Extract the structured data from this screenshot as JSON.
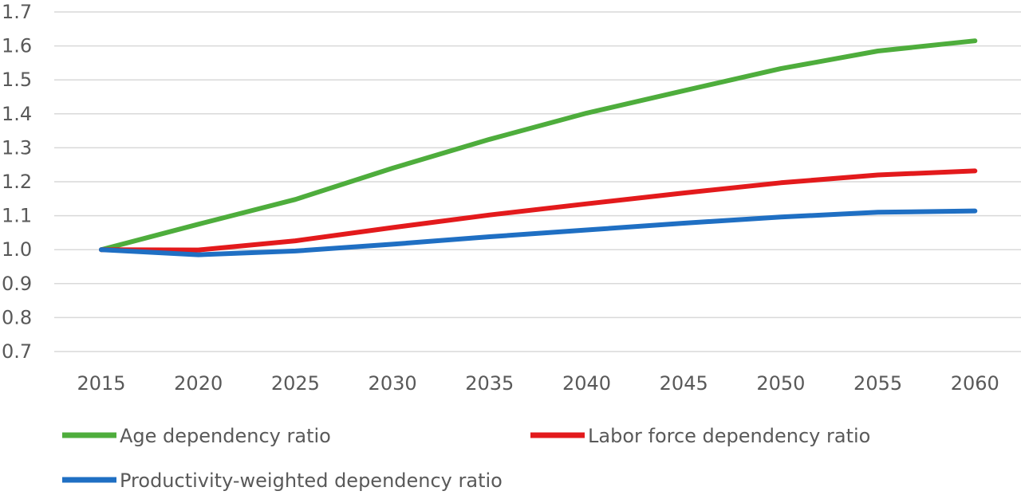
{
  "chart_data": {
    "type": "line",
    "x": [
      2015,
      2020,
      2025,
      2030,
      2035,
      2040,
      2045,
      2050,
      2055,
      2060
    ],
    "x_tick_labels": [
      "2015",
      "2020",
      "2025",
      "2030",
      "2035",
      "2040",
      "2045",
      "2050",
      "2055",
      "2060"
    ],
    "y_tick_labels": [
      "0.7",
      "0.8",
      "0.9",
      "1.0",
      "1.1",
      "1.2",
      "1.3",
      "1.4",
      "1.5",
      "1.6",
      "1.7"
    ],
    "ylim": [
      0.7,
      1.7
    ],
    "grid": true,
    "legend_position": "bottom",
    "series": [
      {
        "name": "Age dependency ratio",
        "color": "#4ead3c",
        "values": [
          1.0,
          1.075,
          1.148,
          1.24,
          1.325,
          1.402,
          1.468,
          1.533,
          1.585,
          1.615
        ]
      },
      {
        "name": "Labor force dependency ratio",
        "color": "#e31a1c",
        "values": [
          1.0,
          0.999,
          1.026,
          1.065,
          1.102,
          1.135,
          1.167,
          1.197,
          1.22,
          1.232
        ]
      },
      {
        "name": "Productivity-weighted dependency ratio",
        "color": "#1f6fc3",
        "values": [
          1.0,
          0.985,
          0.996,
          1.016,
          1.038,
          1.058,
          1.078,
          1.096,
          1.11,
          1.114
        ]
      }
    ]
  }
}
